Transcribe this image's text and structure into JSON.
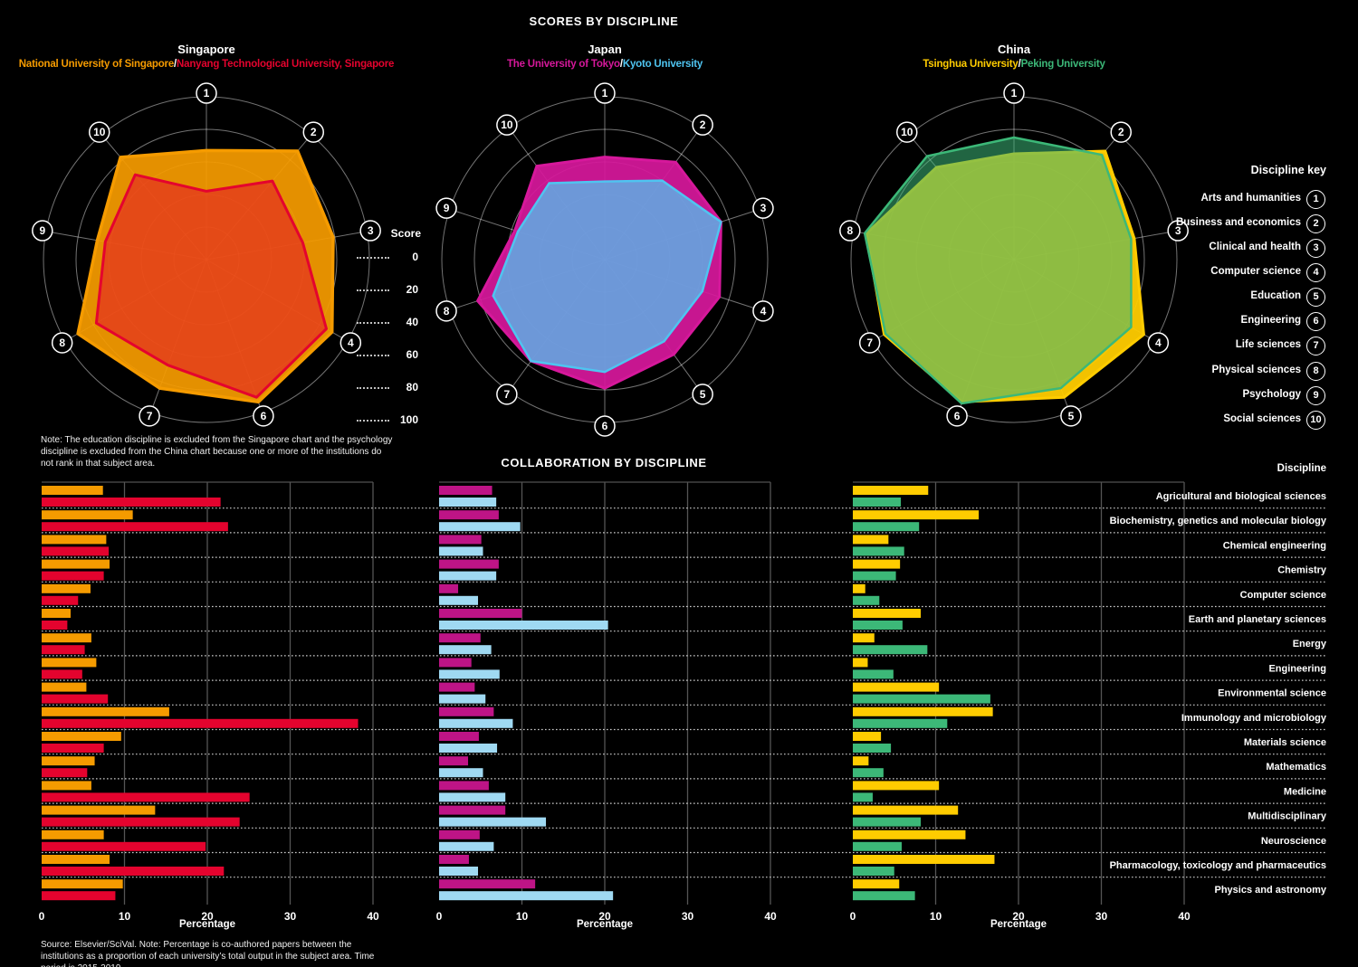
{
  "title": "SCORES BY DISCIPLINE",
  "separator": "/",
  "score_axis": {
    "label": "Score",
    "ticks": [
      "0",
      "20",
      "40",
      "60",
      "80",
      "100"
    ]
  },
  "discipline_key": {
    "title": "Discipline key",
    "items": [
      {
        "num": "1",
        "label": "Arts and humanities"
      },
      {
        "num": "2",
        "label": "Business and economics"
      },
      {
        "num": "3",
        "label": "Clinical and health"
      },
      {
        "num": "4",
        "label": "Computer science"
      },
      {
        "num": "5",
        "label": "Education"
      },
      {
        "num": "6",
        "label": "Engineering"
      },
      {
        "num": "7",
        "label": "Life sciences"
      },
      {
        "num": "8",
        "label": "Physical sciences"
      },
      {
        "num": "9",
        "label": "Psychology"
      },
      {
        "num": "10",
        "label": "Social sciences"
      }
    ]
  },
  "note": "Note: The education discipline is excluded from the Singapore chart and the psychology discipline is excluded from the China chart because one or more of the institutions do not rank in that subject area.",
  "collaboration": {
    "title": "COLLABORATION BY DISCIPLINE",
    "discipline_header": "Discipline"
  },
  "source": "Source: Elsevier/SciVal. Note: Percentage is co-authored papers between the institutions as a proportion of each university’s total output in the subject area. Time period is 2015-2019.",
  "chart_data": [
    {
      "type": "radar",
      "country": "Singapore",
      "axis_numbers": [
        1,
        2,
        3,
        4,
        6,
        7,
        8,
        9,
        10
      ],
      "scale": {
        "min": 0,
        "max": 100,
        "rings": [
          20,
          40,
          60,
          80,
          100
        ]
      },
      "series": [
        {
          "name": "National University of Singapore",
          "color": "#F59B00",
          "values": [
            67,
            87,
            79,
            89,
            93,
            84,
            91,
            68,
            82
          ]
        },
        {
          "name": "Nanyang Technological University, Singapore",
          "color": "#E4032E",
          "values": [
            42,
            63,
            60,
            85,
            90,
            69,
            78,
            63,
            68
          ]
        }
      ]
    },
    {
      "type": "radar",
      "country": "Japan",
      "axis_numbers": [
        1,
        2,
        3,
        4,
        5,
        6,
        7,
        8,
        9,
        10
      ],
      "scale": {
        "min": 0,
        "max": 100,
        "rings": [
          20,
          40,
          60,
          80,
          100
        ]
      },
      "series": [
        {
          "name": "The University of Tokyo",
          "color": "#D6189B",
          "values": [
            63,
            74,
            75,
            74,
            72,
            79,
            77,
            82,
            58,
            71
          ]
        },
        {
          "name": "Kyoto University",
          "color": "#4FC4F0",
          "values": [
            48,
            60,
            75,
            63,
            62,
            69,
            77,
            72,
            56,
            58
          ]
        }
      ]
    },
    {
      "type": "radar",
      "country": "China",
      "axis_numbers": [
        1,
        2,
        3,
        4,
        5,
        6,
        7,
        8,
        10
      ],
      "scale": {
        "min": 0,
        "max": 100,
        "rings": [
          20,
          40,
          60,
          80,
          100
        ]
      },
      "series": [
        {
          "name": "Tsinghua University",
          "color": "#FFCC00",
          "values": [
            65,
            87,
            75,
            92,
            90,
            93,
            92,
            92,
            74
          ]
        },
        {
          "name": "Peking University",
          "color": "#3CB878",
          "values": [
            75,
            84,
            73,
            83,
            84,
            94,
            91,
            93,
            83
          ]
        }
      ]
    },
    {
      "type": "bar",
      "xlabel": "Percentage",
      "xlim": [
        0,
        40
      ],
      "xticks": [
        0,
        10,
        20,
        30,
        40
      ],
      "categories": [
        "Agricultural and biological sciences",
        "Biochemistry, genetics and molecular biology",
        "Chemical engineering",
        "Chemistry",
        "Computer science",
        "Earth and planetary sciences",
        "Energy",
        "Engineering",
        "Environmental science",
        "Immunology and microbiology",
        "Materials science",
        "Mathematics",
        "Medicine",
        "Multidisciplinary",
        "Neuroscience",
        "Pharmacology, toxicology and pharmaceutics",
        "Physics and astronomy"
      ],
      "charts": [
        {
          "country": "Singapore",
          "series": [
            {
              "name": "National University of Singapore",
              "color": "#F59B00",
              "values": [
                7.4,
                11.0,
                7.8,
                8.2,
                5.9,
                3.5,
                6.0,
                6.6,
                5.4,
                15.4,
                9.6,
                6.4,
                6.0,
                13.7,
                7.5,
                8.2,
                9.8
              ]
            },
            {
              "name": "Nanyang Technological University, Singapore",
              "color": "#E4032E",
              "values": [
                21.6,
                22.5,
                8.1,
                7.5,
                4.4,
                3.1,
                5.2,
                4.9,
                8.0,
                38.2,
                7.5,
                5.5,
                25.1,
                23.9,
                19.8,
                22.0,
                8.9
              ]
            }
          ]
        },
        {
          "country": "Japan",
          "series": [
            {
              "name": "The University of Tokyo",
              "color": "#BE1486",
              "values": [
                6.4,
                7.2,
                5.1,
                7.2,
                2.3,
                10.0,
                5.0,
                3.9,
                4.3,
                6.6,
                4.8,
                3.5,
                6.0,
                8.0,
                4.9,
                3.6,
                11.6
              ]
            },
            {
              "name": "Kyoto University",
              "color": "#9FD9F2",
              "values": [
                6.9,
                9.8,
                5.3,
                6.9,
                4.7,
                20.4,
                6.3,
                7.3,
                5.6,
                8.9,
                7.0,
                5.3,
                8.0,
                12.9,
                6.6,
                4.7,
                21.0
              ]
            }
          ]
        },
        {
          "country": "China",
          "series": [
            {
              "name": "Tsinghua University",
              "color": "#FFCC00",
              "values": [
                9.1,
                15.2,
                4.3,
                5.7,
                1.5,
                8.2,
                2.6,
                1.8,
                10.4,
                16.9,
                3.4,
                1.9,
                10.4,
                12.7,
                13.6,
                17.1,
                5.6
              ]
            },
            {
              "name": "Peking University",
              "color": "#3CB878",
              "values": [
                5.8,
                8.0,
                6.2,
                5.2,
                3.2,
                6.0,
                9.0,
                4.9,
                16.6,
                11.4,
                4.6,
                3.7,
                2.4,
                8.2,
                5.9,
                5.0,
                7.5
              ]
            }
          ]
        }
      ]
    }
  ]
}
